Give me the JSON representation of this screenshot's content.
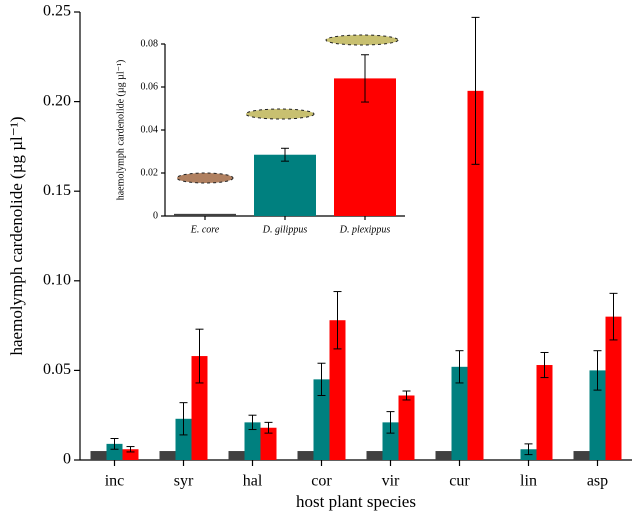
{
  "chart_data": [
    {
      "type": "bar",
      "ylabel": "haemolymph cardenolide (µg µl⁻¹)",
      "xlabel": "host plant species",
      "categories": [
        "inc",
        "syr",
        "hal",
        "cor",
        "vir",
        "cur",
        "lin",
        "asp"
      ],
      "series": [
        {
          "color": "#404040",
          "values": [
            0.005,
            0.005,
            0.005,
            0.005,
            0.005,
            0.005,
            null,
            0.005
          ],
          "errors": [
            null,
            null,
            null,
            null,
            null,
            null,
            null,
            null
          ]
        },
        {
          "color": "#00807f",
          "values": [
            0.009,
            0.023,
            0.021,
            0.045,
            0.021,
            0.052,
            0.006,
            0.05
          ],
          "errors": [
            0.003,
            0.009,
            0.004,
            0.009,
            0.006,
            0.009,
            0.003,
            0.011
          ]
        },
        {
          "color": "#ff0000",
          "values": [
            0.006,
            0.058,
            0.018,
            0.078,
            0.036,
            0.206,
            0.053,
            0.08
          ],
          "errors": [
            0.0015,
            0.015,
            0.003,
            0.016,
            0.0025,
            0.041,
            0.007,
            0.013
          ]
        }
      ],
      "ylim": [
        0,
        0.25
      ],
      "yticks": [
        0,
        0.05,
        {
          "value": 0.1,
          "label": "0.10"
        },
        0.15,
        {
          "value": 0.2,
          "label": "0.20"
        },
        0.25
      ]
    },
    {
      "type": "bar",
      "ylabel": "haemolymph cardenolide (µg µl⁻¹)",
      "categories": [
        "E. core",
        "D. gilippus",
        "D. plexippus"
      ],
      "values": [
        0.001,
        0.0285,
        0.064
      ],
      "errors": [
        null,
        0.003,
        0.011
      ],
      "colors": [
        "#404040",
        "#00807f",
        "#ff0000"
      ],
      "ylim": [
        0,
        0.08
      ],
      "yticks": [
        0,
        0.02,
        0.04,
        0.06,
        0.08
      ]
    }
  ]
}
